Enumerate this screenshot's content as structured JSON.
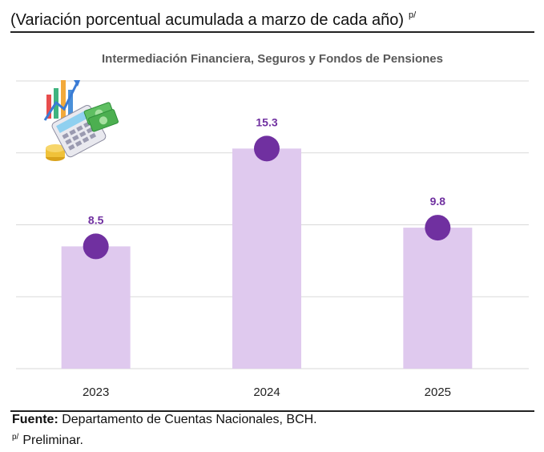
{
  "header": {
    "subtitle": "(Variación porcentual acumulada a marzo de cada año)",
    "subtitle_sup": "p/"
  },
  "chart_data": {
    "type": "bar",
    "title": "Intermediación Financiera, Seguros y Fondos de Pensiones",
    "categories": [
      "2023",
      "2024",
      "2025"
    ],
    "values": [
      8.5,
      15.3,
      9.8
    ],
    "data_labels": [
      "8.5",
      "15.3",
      "9.8"
    ],
    "ylim": [
      0,
      20
    ],
    "grid": true,
    "markers": "circle at top of each bar",
    "colors": {
      "bar": "#dfc9ee",
      "marker": "#7030a0",
      "label": "#7030a0",
      "grid": "#d9d9d9",
      "title": "#595959"
    }
  },
  "footer": {
    "source_label": "Fuente:",
    "source_text": " Departamento de Cuentas Nacionales, BCH.",
    "note_sup": "p/",
    "note_text": "Preliminar."
  },
  "decoration": {
    "icon": "finance-calculator-chart-money-icon"
  }
}
